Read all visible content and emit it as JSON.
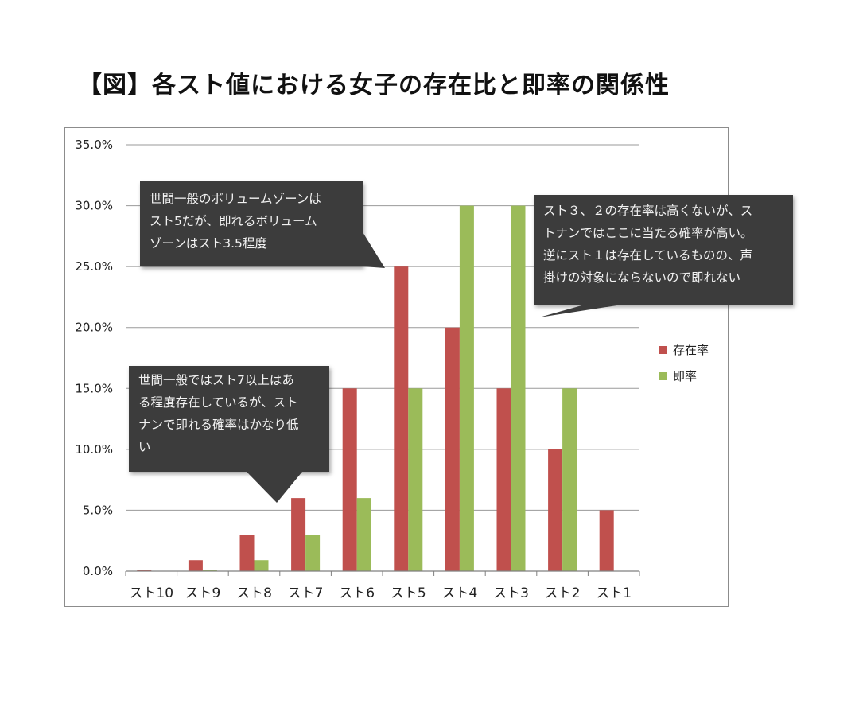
{
  "title": "【図】各スト値における女子の存在比と即率の関係性",
  "chart_data": {
    "type": "bar",
    "categories": [
      "スト10",
      "スト9",
      "スト8",
      "スト7",
      "スト6",
      "スト5",
      "スト4",
      "スト3",
      "スト2",
      "スト1"
    ],
    "series": [
      {
        "name": "存在率",
        "color": "#c0504d",
        "values": [
          0.1,
          0.9,
          3,
          6,
          15,
          25,
          20,
          15,
          10,
          5
        ]
      },
      {
        "name": "即率",
        "color": "#9bbb59",
        "values": [
          0,
          0.1,
          0.9,
          3,
          6,
          15,
          30,
          30,
          15,
          0
        ]
      }
    ],
    "ylim": [
      0,
      35
    ],
    "yticks": [
      "0.0%",
      "5.0%",
      "10.0%",
      "15.0%",
      "20.0%",
      "25.0%",
      "30.0%",
      "35.0%"
    ],
    "legend_position": "right",
    "grid": true
  },
  "callouts": [
    {
      "lines": [
        "世間一般のボリュームゾーンは",
        "スト5だが、即れるボリューム",
        "ゾーンはスト3.5程度"
      ]
    },
    {
      "lines": [
        "スト３、２の存在率は高くないが、ス",
        "トナンではここに当たる確率が高い。",
        "逆にスト１は存在しているものの、声",
        "掛けの対象にならないので即れない"
      ]
    },
    {
      "lines": [
        "世間一般ではスト7以上はあ",
        "る程度存在しているが、スト",
        "ナンで即れる確率はかなり低",
        "い"
      ]
    }
  ]
}
